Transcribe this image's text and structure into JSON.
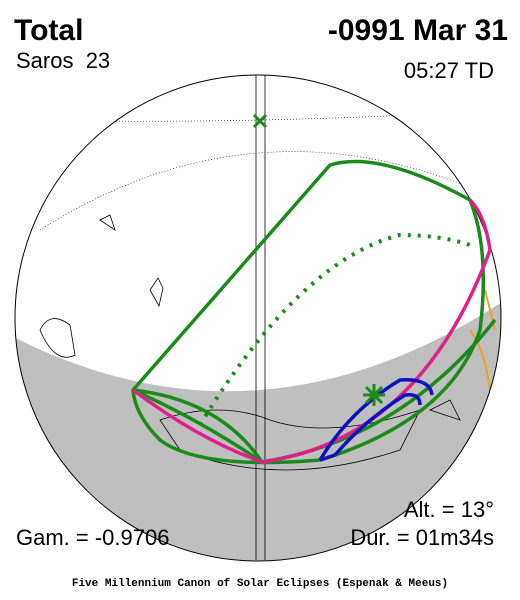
{
  "header": {
    "type": "Total",
    "date": "-0991 Mar 31",
    "saros": "Saros  23",
    "time": "05:27 TD"
  },
  "footer": {
    "gamma": "Gam. = -0.9706",
    "altitude": "Alt. = 13°",
    "duration": "Dur. = 01m34s",
    "credit": "Five Millennium Canon of Solar Eclipses (Espenak & Meeus)"
  }
}
